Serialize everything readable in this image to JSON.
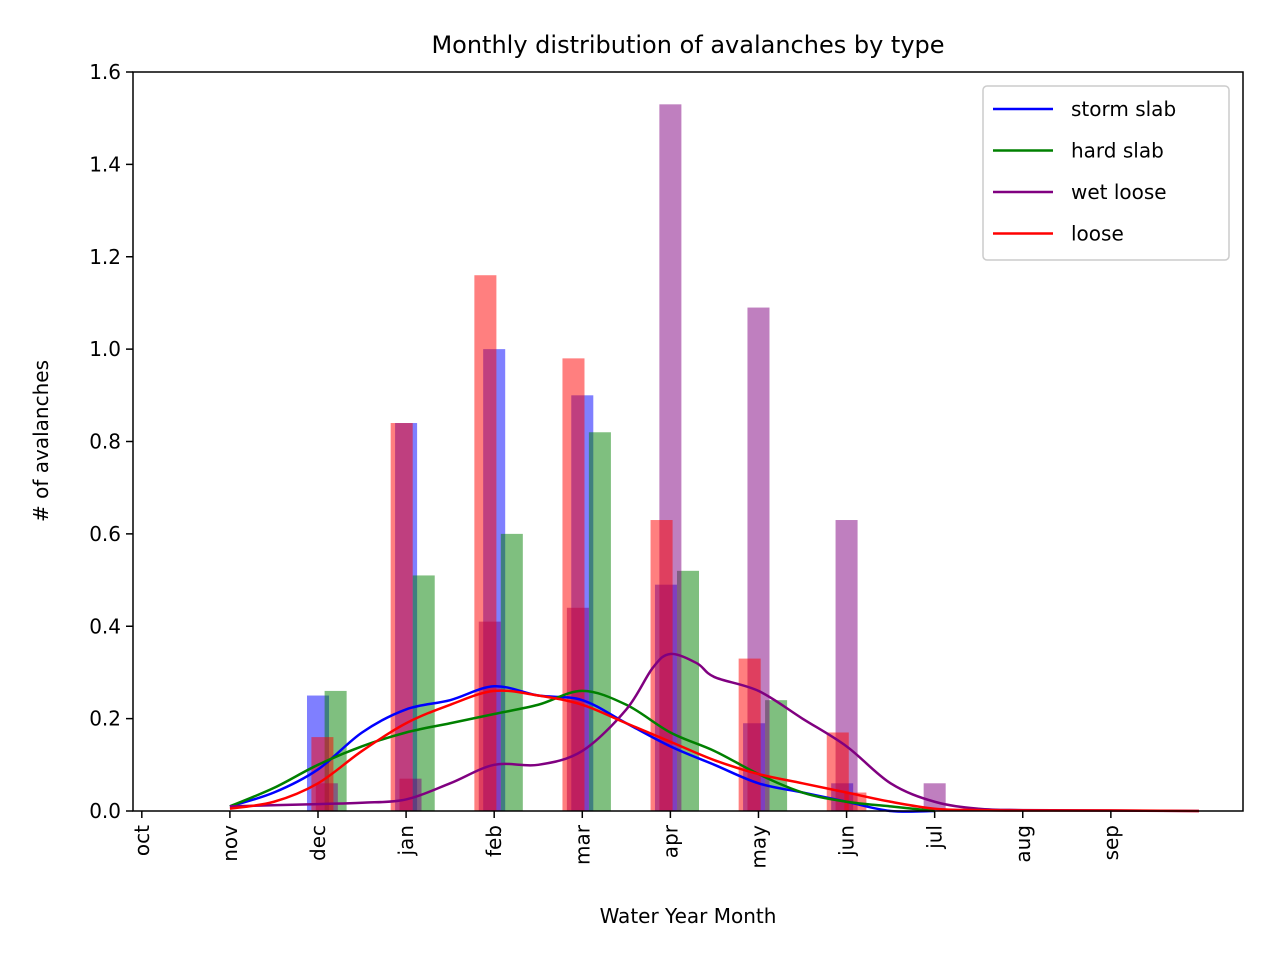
{
  "chart_data": {
    "type": "bar",
    "title": "Monthly distribution of avalanches by type",
    "xlabel": "Water Year Month",
    "ylabel": "# of avalanches",
    "categories": [
      "oct",
      "nov",
      "dec",
      "jan",
      "feb",
      "mar",
      "apr",
      "may",
      "jun",
      "jul",
      "aug",
      "sep"
    ],
    "ylim": [
      0,
      1.6
    ],
    "xlim": [
      -0.1,
      12.5
    ],
    "yticks": [
      "0.0",
      "0.2",
      "0.4",
      "0.6",
      "0.8",
      "1.0",
      "1.2",
      "1.4",
      "1.6"
    ],
    "legend_position": "top-right",
    "grid": false,
    "colors": {
      "storm slab": "#0000ff",
      "hard slab": "#008000",
      "wet loose": "#800080",
      "loose": "#ff0000"
    },
    "series": [
      {
        "name": "storm slab",
        "bars": [
          {
            "x": 2.0,
            "value": 0.25
          },
          {
            "x": 3.0,
            "value": 0.84
          },
          {
            "x": 4.0,
            "value": 1.0
          },
          {
            "x": 5.0,
            "value": 0.9
          },
          {
            "x": 5.95,
            "value": 0.49
          },
          {
            "x": 6.95,
            "value": 0.19
          },
          {
            "x": 7.95,
            "value": 0.06
          }
        ],
        "kde": {
          "x": [
            1.0,
            1.5,
            2.0,
            2.5,
            3.0,
            3.5,
            4.0,
            4.5,
            5.0,
            5.5,
            6.0,
            6.5,
            7.0,
            7.5,
            8.0,
            8.5,
            9.0
          ],
          "y": [
            0.01,
            0.04,
            0.09,
            0.17,
            0.22,
            0.24,
            0.27,
            0.25,
            0.24,
            0.19,
            0.14,
            0.1,
            0.06,
            0.04,
            0.02,
            0.0,
            0.0
          ]
        }
      },
      {
        "name": "hard slab",
        "bars": [
          {
            "x": 2.2,
            "value": 0.26
          },
          {
            "x": 3.2,
            "value": 0.51
          },
          {
            "x": 4.2,
            "value": 0.6
          },
          {
            "x": 5.2,
            "value": 0.82
          },
          {
            "x": 6.2,
            "value": 0.52
          },
          {
            "x": 7.2,
            "value": 0.24
          }
        ],
        "kde": {
          "x": [
            1.0,
            1.5,
            2.0,
            2.5,
            3.0,
            3.5,
            4.0,
            4.5,
            5.0,
            5.5,
            6.0,
            6.5,
            7.0,
            7.5,
            8.0,
            8.5,
            9.0
          ],
          "y": [
            0.01,
            0.05,
            0.1,
            0.14,
            0.17,
            0.19,
            0.21,
            0.23,
            0.26,
            0.23,
            0.17,
            0.13,
            0.08,
            0.04,
            0.02,
            0.01,
            0.0
          ]
        }
      },
      {
        "name": "wet loose",
        "bars": [
          {
            "x": 2.1,
            "value": 0.06
          },
          {
            "x": 3.05,
            "value": 0.07
          },
          {
            "x": 3.95,
            "value": 0.41
          },
          {
            "x": 4.95,
            "value": 0.44
          },
          {
            "x": 6.0,
            "value": 1.53
          },
          {
            "x": 7.0,
            "value": 1.09
          },
          {
            "x": 8.0,
            "value": 0.63
          },
          {
            "x": 9.0,
            "value": 0.06
          }
        ],
        "kde": {
          "x": [
            1.0,
            2.0,
            2.5,
            3.0,
            3.5,
            4.0,
            4.5,
            5.0,
            5.5,
            5.8,
            6.0,
            6.3,
            6.5,
            7.0,
            7.5,
            8.0,
            8.5,
            9.0,
            9.5,
            10.0,
            11.0,
            12.0
          ],
          "y": [
            0.01,
            0.015,
            0.018,
            0.025,
            0.06,
            0.1,
            0.1,
            0.13,
            0.22,
            0.31,
            0.34,
            0.32,
            0.29,
            0.26,
            0.2,
            0.14,
            0.06,
            0.02,
            0.005,
            0.002,
            0.001,
            0.0
          ]
        }
      },
      {
        "name": "loose",
        "bars": [
          {
            "x": 2.05,
            "value": 0.16
          },
          {
            "x": 2.95,
            "value": 0.84
          },
          {
            "x": 3.9,
            "value": 1.16
          },
          {
            "x": 4.9,
            "value": 0.98
          },
          {
            "x": 5.9,
            "value": 0.63
          },
          {
            "x": 6.9,
            "value": 0.33
          },
          {
            "x": 7.9,
            "value": 0.17
          },
          {
            "x": 8.1,
            "value": 0.04
          }
        ],
        "kde": {
          "x": [
            1.0,
            1.5,
            2.0,
            2.5,
            3.0,
            3.5,
            4.0,
            4.5,
            5.0,
            5.5,
            6.0,
            6.5,
            7.0,
            7.5,
            8.0,
            8.5,
            9.0,
            9.5,
            10.0,
            11.0,
            12.0
          ],
          "y": [
            0.005,
            0.02,
            0.06,
            0.13,
            0.19,
            0.23,
            0.26,
            0.25,
            0.23,
            0.19,
            0.15,
            0.11,
            0.08,
            0.06,
            0.04,
            0.02,
            0.005,
            0.002,
            0.001,
            0.001,
            0.0
          ]
        }
      }
    ]
  }
}
